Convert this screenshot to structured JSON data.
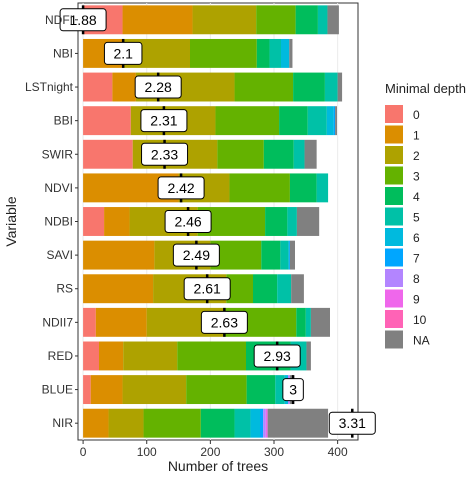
{
  "chart_data": {
    "type": "bar",
    "orientation": "horizontal",
    "stacked": true,
    "xlabel": "Number of trees",
    "ylabel": "Variable",
    "xlim": [
      -8,
      432
    ],
    "x_ticks": [
      0,
      100,
      200,
      300,
      400
    ],
    "grid": true,
    "legend": {
      "title": "Minimal depth",
      "position": "right",
      "items": [
        {
          "label": "0",
          "color": "#F8766D"
        },
        {
          "label": "1",
          "color": "#DB8E00"
        },
        {
          "label": "2",
          "color": "#AEA200"
        },
        {
          "label": "3",
          "color": "#64B200"
        },
        {
          "label": "4",
          "color": "#00BD5C"
        },
        {
          "label": "5",
          "color": "#00C1A7"
        },
        {
          "label": "6",
          "color": "#00BADE"
        },
        {
          "label": "7",
          "color": "#00A6FF"
        },
        {
          "label": "8",
          "color": "#B385FF"
        },
        {
          "label": "9",
          "color": "#EF67EB"
        },
        {
          "label": "10",
          "color": "#FF63B6"
        },
        {
          "label": "NA",
          "color": "#808080"
        }
      ]
    },
    "categories": [
      "NDFI",
      "NBI",
      "LSTnight",
      "BBI",
      "SWIR",
      "NDVI",
      "NDBI",
      "SAVI",
      "RS",
      "NDII7",
      "RED",
      "BLUE",
      "NIR"
    ],
    "mean_minimal_depth": [
      "1.88",
      "2.1",
      "2.28",
      "2.31",
      "2.33",
      "2.42",
      "2.46",
      "2.49",
      "2.61",
      "2.63",
      "2.93",
      "3",
      "3.31"
    ],
    "mean_marker_x": [
      0,
      63,
      118,
      127,
      128,
      154,
      165,
      178,
      195,
      222,
      305,
      330,
      423
    ],
    "series": [
      {
        "name": "0",
        "values": [
          62,
          0,
          46,
          75,
          78,
          0,
          33,
          0,
          0,
          20,
          25,
          12,
          0
        ]
      },
      {
        "name": "1",
        "values": [
          110,
          63,
          37,
          0,
          0,
          150,
          40,
          112,
          110,
          80,
          38,
          50,
          40
        ]
      },
      {
        "name": "2",
        "values": [
          100,
          105,
          155,
          133,
          133,
          80,
          107,
          88,
          115,
          120,
          85,
          100,
          55
        ]
      },
      {
        "name": "3",
        "values": [
          62,
          105,
          92,
          100,
          73,
          95,
          106,
          80,
          42,
          115,
          108,
          95,
          90
        ]
      },
      {
        "name": "4",
        "values": [
          35,
          20,
          50,
          45,
          47,
          42,
          35,
          30,
          38,
          15,
          70,
          45,
          53
        ]
      },
      {
        "name": "5",
        "values": [
          15,
          18,
          20,
          30,
          17,
          18,
          15,
          13,
          22,
          8,
          25,
          15,
          25
        ]
      },
      {
        "name": "6",
        "values": [
          0,
          13,
          0,
          11,
          0,
          0,
          0,
          0,
          0,
          0,
          0,
          5,
          15
        ]
      },
      {
        "name": "7",
        "values": [
          0,
          0,
          0,
          2,
          0,
          0,
          0,
          2,
          0,
          0,
          0,
          0,
          5
        ]
      },
      {
        "name": "8",
        "values": [
          0,
          0,
          0,
          0,
          0,
          0,
          0,
          0,
          0,
          0,
          0,
          3,
          4
        ]
      },
      {
        "name": "9",
        "values": [
          0,
          0,
          0,
          0,
          0,
          0,
          0,
          0,
          0,
          0,
          0,
          0,
          3
        ]
      },
      {
        "name": "10",
        "values": [
          0,
          0,
          0,
          0,
          0,
          0,
          0,
          0,
          0,
          0,
          0,
          0,
          0
        ]
      },
      {
        "name": "NA",
        "values": [
          18,
          5,
          7,
          3,
          19,
          0,
          35,
          8,
          20,
          30,
          7,
          5,
          95
        ]
      }
    ]
  }
}
